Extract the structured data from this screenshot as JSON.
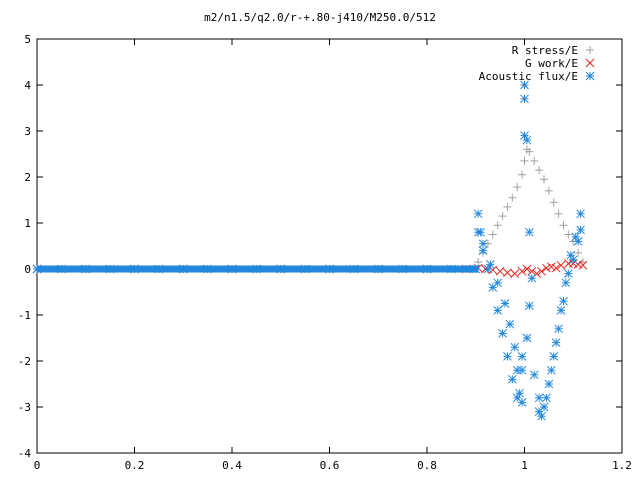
{
  "chart_data": {
    "type": "scatter",
    "title": "m2/n1.5/q2.0/r-+.80-j410/M250.0/512",
    "xlabel": "",
    "ylabel": "",
    "xlim": [
      0,
      1.2
    ],
    "ylim": [
      -4,
      5
    ],
    "xticks": [
      0,
      0.2,
      0.4,
      0.6,
      0.8,
      1,
      1.2
    ],
    "yticks": [
      -4,
      -3,
      -2,
      -1,
      0,
      1,
      2,
      3,
      4,
      5
    ],
    "legend_position": "top-right",
    "grid": false,
    "series": [
      {
        "name": "R stress/E",
        "marker": "plus",
        "color": "#a0a0a0",
        "points": [
          [
            0.0,
            0.0
          ],
          [
            0.1,
            0.0
          ],
          [
            0.2,
            0.0
          ],
          [
            0.3,
            0.0
          ],
          [
            0.4,
            0.0
          ],
          [
            0.5,
            0.0
          ],
          [
            0.6,
            0.0
          ],
          [
            0.7,
            0.0
          ],
          [
            0.8,
            0.0
          ],
          [
            0.88,
            0.0
          ],
          [
            0.905,
            0.15
          ],
          [
            0.915,
            0.35
          ],
          [
            0.925,
            0.55
          ],
          [
            0.935,
            0.75
          ],
          [
            0.945,
            0.95
          ],
          [
            0.955,
            1.15
          ],
          [
            0.965,
            1.35
          ],
          [
            0.975,
            1.55
          ],
          [
            0.985,
            1.78
          ],
          [
            0.995,
            2.05
          ],
          [
            1.0,
            2.35
          ],
          [
            1.005,
            2.6
          ],
          [
            1.01,
            2.55
          ],
          [
            1.02,
            2.35
          ],
          [
            1.03,
            2.15
          ],
          [
            1.04,
            1.95
          ],
          [
            1.05,
            1.7
          ],
          [
            1.06,
            1.45
          ],
          [
            1.07,
            1.2
          ],
          [
            1.08,
            0.95
          ],
          [
            1.09,
            0.75
          ],
          [
            1.1,
            0.6
          ],
          [
            1.11,
            0.35
          ],
          [
            1.12,
            0.15
          ]
        ]
      },
      {
        "name": "G work/E",
        "marker": "cross",
        "color": "#e8231c",
        "points": [
          [
            0.0,
            0.0
          ],
          [
            0.1,
            0.0
          ],
          [
            0.2,
            0.0
          ],
          [
            0.3,
            0.0
          ],
          [
            0.4,
            0.0
          ],
          [
            0.5,
            0.0
          ],
          [
            0.6,
            0.0
          ],
          [
            0.7,
            0.0
          ],
          [
            0.8,
            0.0
          ],
          [
            0.88,
            0.0
          ],
          [
            0.905,
            0.02
          ],
          [
            0.92,
            0.0
          ],
          [
            0.935,
            -0.02
          ],
          [
            0.95,
            -0.05
          ],
          [
            0.965,
            -0.08
          ],
          [
            0.98,
            -0.1
          ],
          [
            0.995,
            -0.05
          ],
          [
            1.005,
            0.0
          ],
          [
            1.015,
            -0.05
          ],
          [
            1.025,
            -0.1
          ],
          [
            1.035,
            -0.05
          ],
          [
            1.045,
            0.02
          ],
          [
            1.055,
            0.05
          ],
          [
            1.065,
            0.02
          ],
          [
            1.075,
            0.08
          ],
          [
            1.09,
            0.12
          ],
          [
            1.1,
            0.12
          ],
          [
            1.11,
            0.1
          ],
          [
            1.12,
            0.08
          ]
        ]
      },
      {
        "name": "Acoustic flux/E",
        "marker": "star",
        "color": "#2288dd",
        "points": [
          [
            0.0,
            0.0
          ],
          [
            0.05,
            0.0
          ],
          [
            0.1,
            0.0
          ],
          [
            0.15,
            0.0
          ],
          [
            0.2,
            0.0
          ],
          [
            0.25,
            0.0
          ],
          [
            0.3,
            0.0
          ],
          [
            0.35,
            0.0
          ],
          [
            0.4,
            0.0
          ],
          [
            0.45,
            0.0
          ],
          [
            0.5,
            0.0
          ],
          [
            0.55,
            0.0
          ],
          [
            0.6,
            0.0
          ],
          [
            0.65,
            0.0
          ],
          [
            0.7,
            0.0
          ],
          [
            0.75,
            0.0
          ],
          [
            0.8,
            0.0
          ],
          [
            0.85,
            0.0
          ],
          [
            0.9,
            0.0
          ],
          [
            0.905,
            1.2
          ],
          [
            0.91,
            0.8
          ],
          [
            0.915,
            0.4
          ],
          [
            0.925,
            0.0
          ],
          [
            0.935,
            -0.4
          ],
          [
            0.945,
            -0.9
          ],
          [
            0.955,
            -1.4
          ],
          [
            0.965,
            -1.9
          ],
          [
            0.975,
            -2.4
          ],
          [
            0.985,
            -2.8
          ],
          [
            0.905,
            0.8
          ],
          [
            0.915,
            0.55
          ],
          [
            0.93,
            0.1
          ],
          [
            0.945,
            -0.3
          ],
          [
            0.96,
            -0.75
          ],
          [
            0.97,
            -1.2
          ],
          [
            0.98,
            -1.7
          ],
          [
            0.985,
            -2.2
          ],
          [
            0.99,
            -2.7
          ],
          [
            0.995,
            -2.9
          ],
          [
            1.0,
            4.0
          ],
          [
            1.0,
            3.7
          ],
          [
            1.0,
            2.9
          ],
          [
            1.005,
            2.8
          ],
          [
            0.995,
            -1.9
          ],
          [
            0.995,
            -2.2
          ],
          [
            1.005,
            -1.5
          ],
          [
            1.01,
            -0.8
          ],
          [
            1.015,
            -0.2
          ],
          [
            1.01,
            0.8
          ],
          [
            1.02,
            -2.3
          ],
          [
            1.03,
            -2.8
          ],
          [
            1.035,
            -3.2
          ],
          [
            1.045,
            -2.8
          ],
          [
            1.055,
            -2.2
          ],
          [
            1.065,
            -1.6
          ],
          [
            1.075,
            -0.9
          ],
          [
            1.085,
            -0.3
          ],
          [
            1.095,
            0.3
          ],
          [
            1.105,
            0.7
          ],
          [
            1.115,
            1.2
          ],
          [
            1.03,
            -3.1
          ],
          [
            1.04,
            -3.0
          ],
          [
            1.05,
            -2.5
          ],
          [
            1.06,
            -1.9
          ],
          [
            1.07,
            -1.3
          ],
          [
            1.08,
            -0.7
          ],
          [
            1.09,
            -0.1
          ],
          [
            1.1,
            0.2
          ],
          [
            1.11,
            0.6
          ],
          [
            1.115,
            0.85
          ]
        ]
      }
    ]
  }
}
